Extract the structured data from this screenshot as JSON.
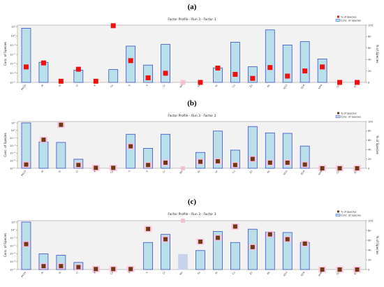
{
  "colors": {
    "bar_fill": "#b9dfea",
    "bar_stroke": "#3a4fc4",
    "plot_bg": "#f2f2f2",
    "marker_a": "#ee1111",
    "marker_bc": "#6b3a12",
    "highlight": "#ffc0e0"
  },
  "legend": {
    "pct_label": "% of Species",
    "conc_label": "Conc. of Species"
  },
  "chart_data": [
    {
      "type": "bar",
      "panel_label": "(a)",
      "title": "Factor Profile - Run 3 - Factor 1",
      "ylabel": "Conc. of Species",
      "y2label": "% of Species",
      "log_ticks": [
        "10¹",
        "10°",
        "10⁻¹",
        "10⁻²",
        "10⁻³",
        "10⁻⁴",
        "10⁻⁵"
      ],
      "y2lim": [
        0,
        100
      ],
      "y2_ticks": [
        "0",
        "20",
        "40",
        "60",
        "80",
        "100"
      ],
      "categories": [
        "PM10",
        "Al",
        "Si",
        "Cl",
        "K",
        "Ca",
        "Ti",
        "V",
        "Cr",
        "Mn",
        "Fe",
        "Ni",
        "Cu",
        "Zn",
        "Pb",
        "NO3",
        "SO4",
        "NH4",
        "OC",
        "EC"
      ],
      "conc_level": [
        0.97,
        0.36,
        0.0,
        0.22,
        0.0,
        0.23,
        0.65,
        0.31,
        0.68,
        0.0,
        0.0,
        0.26,
        0.72,
        0.28,
        0.94,
        0.67,
        0.73,
        0.42,
        0.0,
        0.0
      ],
      "percent": [
        27,
        34,
        2,
        23,
        2,
        99,
        38,
        8,
        16,
        0,
        0,
        25,
        14,
        7,
        26,
        11,
        20,
        27,
        0,
        0
      ],
      "excluded": [
        false,
        false,
        false,
        false,
        false,
        false,
        false,
        false,
        false,
        true,
        false,
        false,
        false,
        false,
        false,
        false,
        false,
        false,
        false,
        false
      ],
      "marker": "red"
    },
    {
      "type": "bar",
      "panel_label": "(b)",
      "title": "Factor Profile - Run 3 - Factor 2",
      "ylabel": "Conc. of Species",
      "y2label": "% of Species",
      "log_ticks": [
        "10¹",
        "10°",
        "10⁻¹",
        "10⁻²",
        "10⁻³",
        "10⁻⁴",
        "10⁻⁵"
      ],
      "y2lim": [
        0,
        100
      ],
      "y2_ticks": [
        "0",
        "20",
        "40",
        "60",
        "80",
        "100"
      ],
      "categories": [
        "PM10",
        "Al",
        "Si",
        "Cl",
        "K",
        "Ca",
        "Ti",
        "V",
        "Cr",
        "Mn",
        "Fe",
        "Ni",
        "Cu",
        "Zn",
        "Pb",
        "NO3",
        "SO4",
        "NH4",
        "OC",
        "EC"
      ],
      "conc_level": [
        1.0,
        0.58,
        0.57,
        0.2,
        0.0,
        0.0,
        0.75,
        0.44,
        0.75,
        0.0,
        0.35,
        0.82,
        0.4,
        0.92,
        0.78,
        0.77,
        0.49,
        0.0,
        0.0,
        0.0
      ],
      "percent": [
        8,
        61,
        93,
        7,
        1,
        1,
        47,
        7,
        12,
        0,
        14,
        15,
        7,
        20,
        12,
        12,
        8,
        0,
        0,
        0
      ],
      "excluded": [
        false,
        false,
        false,
        false,
        false,
        false,
        false,
        false,
        false,
        true,
        false,
        false,
        false,
        false,
        false,
        false,
        false,
        false,
        false,
        false
      ],
      "marker": "brown"
    },
    {
      "type": "bar",
      "panel_label": "(c)",
      "title": "Factor Profile - Run 3 - Factor 3",
      "ylabel": "Conc. of Species",
      "y2label": "% of Species",
      "log_ticks": [
        "10¹",
        "10°",
        "10⁻¹",
        "10⁻²",
        "10⁻³",
        "10⁻⁴",
        "10⁻⁵"
      ],
      "y2lim": [
        0,
        100
      ],
      "y2_ticks": [
        "0",
        "20",
        "40",
        "60",
        "80",
        "100"
      ],
      "categories": [
        "PM10",
        "Al",
        "Si",
        "Cl",
        "K",
        "Ca",
        "Ti",
        "V",
        "Cr",
        "Mn",
        "Fe",
        "Ni",
        "Cu",
        "Zn",
        "Pb",
        "NO3",
        "SO4",
        "NH4",
        "OC",
        "EC"
      ],
      "conc_level": [
        1.0,
        0.33,
        0.3,
        0.15,
        0.0,
        0.0,
        0.0,
        0.57,
        0.74,
        0.32,
        0.4,
        0.8,
        0.57,
        0.85,
        0.79,
        0.78,
        0.57,
        0.0,
        0.0,
        0.0
      ],
      "percent": [
        52,
        7,
        7,
        5,
        1,
        1,
        1,
        83,
        62,
        100,
        57,
        65,
        88,
        46,
        72,
        62,
        53,
        0,
        0,
        0
      ],
      "excluded": [
        false,
        false,
        false,
        false,
        false,
        false,
        false,
        false,
        false,
        true,
        false,
        false,
        false,
        false,
        false,
        false,
        false,
        false,
        false,
        false
      ],
      "marker": "brown"
    }
  ]
}
